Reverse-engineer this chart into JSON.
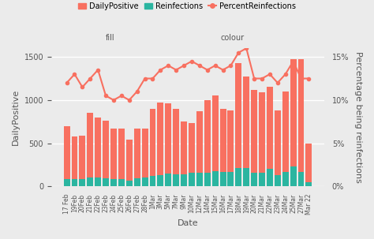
{
  "dates": [
    "17 Feb",
    "19Feb",
    "20Feb",
    "21Feb",
    "22Feb",
    "23Feb",
    "24Feb",
    "25Feb",
    "26Feb",
    "27Feb",
    "28Feb",
    "1Mar",
    "3Mar",
    "5Mar",
    "7Mar",
    "9Mar",
    "10Mar",
    "12Mar",
    "14Mar",
    "15Mar",
    "16Mar",
    "17Mar",
    "18Mar",
    "19Mar",
    "20Mar",
    "21Mar",
    "22Mar",
    "23Mar",
    "24Mar",
    "25Mar",
    "27Mar",
    "Mar 22"
  ],
  "daily_positive": [
    700,
    575,
    590,
    850,
    800,
    760,
    670,
    670,
    545,
    670,
    670,
    900,
    970,
    960,
    900,
    750,
    730,
    870,
    1000,
    1050,
    900,
    880,
    1430,
    1270,
    1120,
    1090,
    1150,
    880,
    1100,
    1470,
    1470,
    500
  ],
  "reinfections": [
    80,
    85,
    85,
    100,
    100,
    90,
    80,
    80,
    70,
    90,
    100,
    120,
    130,
    145,
    135,
    140,
    155,
    160,
    160,
    175,
    165,
    170,
    215,
    215,
    160,
    160,
    200,
    130,
    170,
    230,
    170,
    50
  ],
  "percent_reinfections": [
    12.0,
    13.0,
    11.5,
    12.5,
    13.5,
    10.5,
    10.0,
    10.5,
    10.0,
    11.0,
    12.5,
    12.5,
    13.5,
    14.0,
    13.5,
    14.0,
    14.5,
    14.0,
    13.5,
    14.0,
    13.5,
    14.0,
    15.5,
    16.0,
    12.5,
    12.5,
    13.0,
    12.0,
    13.0,
    14.5,
    12.5,
    12.5
  ],
  "bar_color_positive": "#F87060",
  "bar_color_reinfections": "#2BB5A0",
  "line_color": "#F87060",
  "background_color": "#EBEBEB",
  "grid_color": "#FFFFFF",
  "title_left": "DailyPositive",
  "title_right": "Percentage being reinfections",
  "xlabel": "Date",
  "ylim_left": [
    0,
    1600
  ],
  "ylim_right": [
    0,
    16
  ],
  "yticks_left": [
    0,
    500,
    1000,
    1500
  ],
  "yticks_right": [
    0,
    5,
    10,
    15
  ],
  "ytick_labels_left": [
    "0",
    "500",
    "1000",
    "1500"
  ],
  "ytick_labels_right": [
    "0%",
    "5%",
    "10%",
    "15%"
  ],
  "legend_fill_label1": "DailyPositive",
  "legend_fill_label2": "Reinfections",
  "legend_colour_label": "PercentReinfections",
  "font_color": "#555555"
}
